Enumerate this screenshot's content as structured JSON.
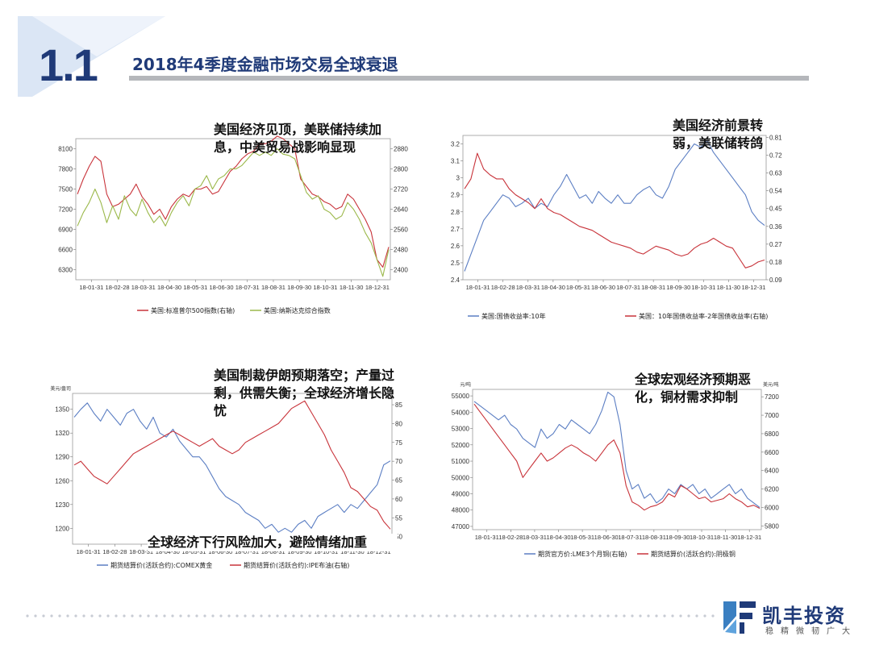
{
  "slide": {
    "section_number": "1.1",
    "title": "2018年4季度金融市场交易全球衰退",
    "accent_color": "#1f3a78"
  },
  "logo": {
    "name": "凯丰投资",
    "tagline": "稳精微韧广大",
    "icon": "kf-logo-icon"
  },
  "chart_data": [
    {
      "type": "line",
      "annotation": "美国经济见顶，美联储持续加息，中美贸易战影响显现",
      "x_tick_labels": [
        "18-01-31",
        "18-02-28",
        "18-03-31",
        "18-04-30",
        "18-05-31",
        "18-06-30",
        "18-07-31",
        "18-08-31",
        "18-09-30",
        "18-10-31",
        "18-11-30",
        "18-12-31"
      ],
      "y_left": {
        "ticks": [
          6300,
          6600,
          6900,
          7200,
          7500,
          7800,
          8100
        ],
        "range": [
          6150,
          8250
        ]
      },
      "y_right": {
        "ticks": [
          2400,
          2480,
          2560,
          2640,
          2720,
          2800,
          2880
        ],
        "range": [
          2360,
          2920
        ]
      },
      "series": [
        {
          "name": "美国:标准普尔500指数(右轴)",
          "axis": "right",
          "color": "#c8333a",
          "values": [
            2700,
            2760,
            2810,
            2850,
            2830,
            2700,
            2650,
            2660,
            2680,
            2700,
            2740,
            2690,
            2660,
            2620,
            2640,
            2600,
            2650,
            2680,
            2700,
            2690,
            2720,
            2720,
            2730,
            2700,
            2710,
            2750,
            2790,
            2810,
            2840,
            2860,
            2870,
            2900,
            2900,
            2910,
            2930,
            2920,
            2900,
            2880,
            2760,
            2730,
            2700,
            2690,
            2670,
            2660,
            2640,
            2650,
            2700,
            2680,
            2640,
            2600,
            2550,
            2440,
            2410,
            2490
          ]
        },
        {
          "name": "美国:纳斯达克综合指数",
          "axis": "left",
          "color": "#9bb84a",
          "values": [
            6950,
            7150,
            7300,
            7500,
            7300,
            7000,
            7250,
            7050,
            7400,
            7200,
            7100,
            7350,
            7150,
            7000,
            7100,
            6950,
            7150,
            7300,
            7400,
            7250,
            7500,
            7550,
            7700,
            7500,
            7650,
            7700,
            7800,
            7800,
            7850,
            7950,
            8050,
            8000,
            8050,
            8000,
            8100,
            8020,
            8000,
            7950,
            7700,
            7450,
            7350,
            7400,
            7200,
            7150,
            7050,
            7100,
            7300,
            7200,
            7050,
            6850,
            6700,
            6450,
            6200,
            6600
          ]
        }
      ]
    },
    {
      "type": "line",
      "annotation": "美国经济前景转弱，美联储转鸽",
      "x_tick_labels": [
        "18-01-31",
        "18-02-28",
        "18-03-31",
        "18-04-30",
        "18-05-31",
        "18-06-30",
        "18-07-31",
        "18-08-31",
        "18-09-30",
        "18-10-31",
        "18-11-30",
        "18-12-31"
      ],
      "y_left": {
        "ticks": [
          2.4,
          2.5,
          2.6,
          2.7,
          2.8,
          2.9,
          3.0,
          3.1,
          3.2
        ],
        "range": [
          2.4,
          3.25
        ]
      },
      "y_right": {
        "ticks": [
          0.09,
          0.18,
          0.27,
          0.36,
          0.45,
          0.54,
          0.63,
          0.72,
          0.81
        ],
        "range": [
          0.09,
          0.82
        ]
      },
      "series": [
        {
          "name": "美国:国债收益率:10年",
          "axis": "left",
          "color": "#5b7ec3",
          "values": [
            2.45,
            2.55,
            2.65,
            2.75,
            2.8,
            2.85,
            2.9,
            2.88,
            2.83,
            2.85,
            2.88,
            2.82,
            2.85,
            2.83,
            2.9,
            2.95,
            3.02,
            2.95,
            2.88,
            2.9,
            2.85,
            2.92,
            2.88,
            2.85,
            2.9,
            2.85,
            2.85,
            2.9,
            2.93,
            2.95,
            2.9,
            2.88,
            2.95,
            3.05,
            3.1,
            3.15,
            3.2,
            3.18,
            3.22,
            3.15,
            3.1,
            3.05,
            3.0,
            2.95,
            2.9,
            2.8,
            2.75,
            2.72
          ]
        },
        {
          "name": "美国：10年国债收益率-2年国债收益率(右轴)",
          "axis": "right",
          "color": "#c8333a",
          "values": [
            0.55,
            0.6,
            0.73,
            0.65,
            0.62,
            0.6,
            0.6,
            0.55,
            0.52,
            0.5,
            0.48,
            0.45,
            0.5,
            0.45,
            0.43,
            0.42,
            0.4,
            0.38,
            0.36,
            0.35,
            0.34,
            0.32,
            0.3,
            0.28,
            0.27,
            0.26,
            0.25,
            0.23,
            0.22,
            0.24,
            0.26,
            0.25,
            0.24,
            0.22,
            0.21,
            0.22,
            0.25,
            0.27,
            0.28,
            0.3,
            0.28,
            0.26,
            0.25,
            0.2,
            0.15,
            0.16,
            0.18,
            0.19
          ]
        }
      ]
    },
    {
      "type": "line",
      "annotation": "美国制裁伊朗预期落空；产量过剩，供需失衡；全球经济增长隐忧",
      "annotation_bottom": "全球经济下行风险加大，避险情绪加重",
      "y_left_unit": "美元/盎司",
      "x_tick_labels": [
        "18-01-31",
        "18-02-28",
        "18-03-31",
        "18-04-30",
        "18-05-31",
        "18-06-30",
        "18-07-31",
        "18-08-31",
        "18-09-30",
        "18-10-31",
        "18-11-30",
        "18-12-31"
      ],
      "y_left": {
        "ticks": [
          1200,
          1230,
          1260,
          1290,
          1320,
          1350
        ],
        "range": [
          1180,
          1370
        ]
      },
      "y_right": {
        "ticks": [
          50,
          55,
          60,
          65,
          70,
          75,
          80,
          85
        ],
        "range": [
          48,
          88
        ]
      },
      "series": [
        {
          "name": "期货结算价(活跃合约):COMEX黄金",
          "axis": "left",
          "color": "#5b7ec3",
          "values": [
            1340,
            1350,
            1358,
            1345,
            1335,
            1350,
            1340,
            1330,
            1345,
            1350,
            1335,
            1325,
            1340,
            1320,
            1315,
            1325,
            1310,
            1300,
            1290,
            1290,
            1280,
            1265,
            1250,
            1240,
            1235,
            1230,
            1220,
            1215,
            1210,
            1200,
            1205,
            1195,
            1200,
            1195,
            1205,
            1210,
            1200,
            1215,
            1220,
            1225,
            1230,
            1220,
            1230,
            1225,
            1235,
            1245,
            1255,
            1280,
            1285
          ]
        },
        {
          "name": "期货结算价(活跃合约):IPE布油(右轴)",
          "axis": "right",
          "color": "#c8333a",
          "values": [
            69,
            70,
            68,
            66,
            65,
            64,
            66,
            68,
            70,
            72,
            73,
            74,
            75,
            76,
            77,
            78,
            77,
            76,
            75,
            74,
            75,
            76,
            74,
            73,
            72,
            73,
            75,
            76,
            77,
            78,
            79,
            80,
            82,
            84,
            85,
            86,
            83,
            80,
            77,
            73,
            70,
            67,
            63,
            62,
            60,
            58,
            57,
            54,
            52
          ]
        }
      ]
    },
    {
      "type": "line",
      "annotation": "全球宏观经济预期恶化，铜材需求抑制",
      "y_left_unit": "元/吨",
      "y_right_unit": "美元/吨",
      "x_tick_labels": [
        "18-01-31",
        "18-02-28",
        "18-03-31",
        "18-04-30",
        "18-05-31",
        "18-06-30",
        "18-07-31",
        "18-08-31",
        "18-09-30",
        "18-10-31",
        "18-11-30",
        "18-12-31"
      ],
      "y_left": {
        "ticks": [
          47000,
          48000,
          49000,
          50000,
          51000,
          52000,
          53000,
          54000,
          55000
        ],
        "range": [
          46800,
          55400
        ]
      },
      "y_right": {
        "ticks": [
          5800,
          6000,
          6200,
          6400,
          6600,
          6800,
          7000,
          7200
        ],
        "range": [
          5760,
          7280
        ]
      },
      "series": [
        {
          "name": "期货官方价:LME3个月铜(右轴)",
          "axis": "right",
          "color": "#5b7ec3",
          "values": [
            7150,
            7100,
            7050,
            7000,
            6950,
            7000,
            6900,
            6850,
            6750,
            6700,
            6650,
            6850,
            6750,
            6800,
            6900,
            6850,
            6950,
            6900,
            6850,
            6800,
            6900,
            7050,
            7250,
            7200,
            6900,
            6400,
            6200,
            6250,
            6100,
            6150,
            6050,
            6100,
            6200,
            6150,
            6250,
            6200,
            6250,
            6150,
            6200,
            6100,
            6150,
            6200,
            6250,
            6150,
            6200,
            6100,
            6050,
            6000
          ]
        },
        {
          "name": "期货结算价(活跃合约):阴极铜",
          "axis": "left",
          "color": "#c8333a",
          "values": [
            54500,
            54000,
            53500,
            53000,
            52500,
            52000,
            51500,
            51000,
            50000,
            50500,
            51000,
            51500,
            51000,
            51200,
            51500,
            51800,
            52000,
            51800,
            51500,
            51300,
            51000,
            51500,
            52000,
            52300,
            51500,
            49500,
            48500,
            48300,
            48000,
            48200,
            48300,
            48500,
            49000,
            48800,
            49500,
            49300,
            49000,
            48700,
            48800,
            48500,
            48600,
            48700,
            49000,
            48700,
            48500,
            48200,
            48300,
            48100
          ]
        }
      ]
    }
  ]
}
